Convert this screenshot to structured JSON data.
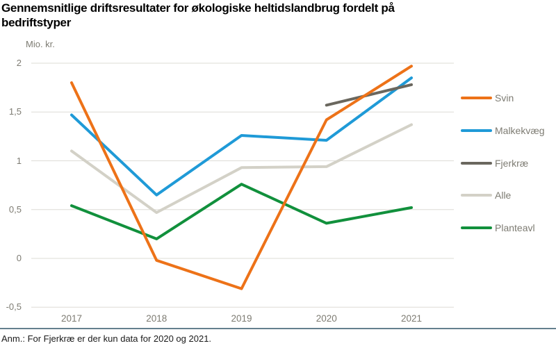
{
  "page": {
    "title_lines": [
      "Gennemsnitlige driftsresultater for økologiske heltidslandbrug fordelt på",
      "bedriftstyper"
    ],
    "note": "Anm.: For Fjerkræ er der kun data for 2020 og 2021."
  },
  "chart_data": {
    "type": "line",
    "title": "Gennemsnitlige driftsresultater for økologiske heltidslandbrug fordelt på bedriftstyper",
    "ylabel": "Mio. kr.",
    "xlabel": "",
    "categories": [
      "2017",
      "2018",
      "2019",
      "2020",
      "2021"
    ],
    "series": [
      {
        "name": "Svin",
        "color": "#ed7218",
        "values": [
          1.8,
          -0.02,
          -0.31,
          1.42,
          1.97
        ]
      },
      {
        "name": "Malkekvæg",
        "color": "#1f9ad7",
        "values": [
          1.47,
          0.65,
          1.26,
          1.21,
          1.85
        ]
      },
      {
        "name": "Fjerkræ",
        "color": "#6a675e",
        "values": [
          null,
          null,
          null,
          1.57,
          1.78
        ]
      },
      {
        "name": "Alle",
        "color": "#d3d1c7",
        "values": [
          1.1,
          0.47,
          0.93,
          0.94,
          1.37
        ]
      },
      {
        "name": "Planteavl",
        "color": "#11903c",
        "values": [
          0.54,
          0.2,
          0.76,
          0.36,
          0.52
        ]
      }
    ],
    "y_ticks": [
      {
        "value": 2,
        "label": "2"
      },
      {
        "value": 1.5,
        "label": "1,5"
      },
      {
        "value": 1,
        "label": "1"
      },
      {
        "value": 0.5,
        "label": "0,5"
      },
      {
        "value": 0,
        "label": "0"
      },
      {
        "value": -0.5,
        "label": "-0,5"
      }
    ],
    "ylim": [
      -0.5,
      2
    ],
    "grid": true,
    "legend_position": "right",
    "draw_order": [
      "Alle",
      "Planteavl",
      "Malkekvæg",
      "Fjerkræ",
      "Svin"
    ]
  },
  "colors": {
    "grid": "#dddcd6",
    "axis_text": "#7d7b72",
    "separator": "#64808e"
  }
}
